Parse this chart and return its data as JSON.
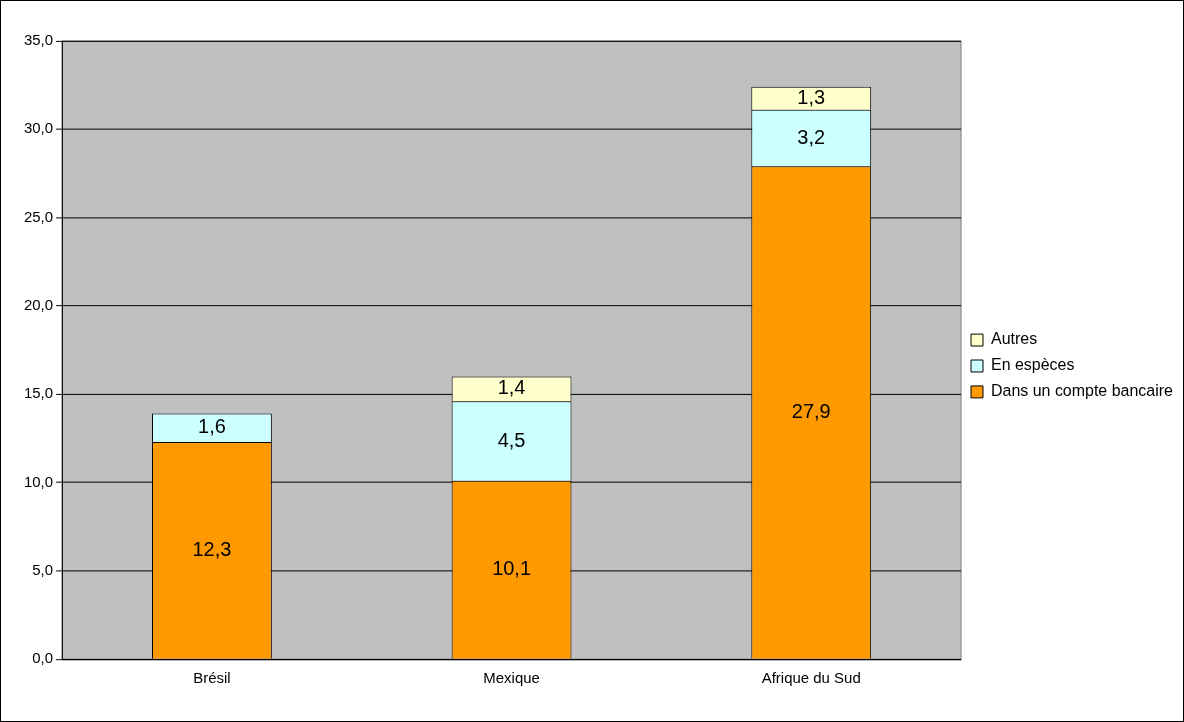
{
  "chart_data": {
    "type": "bar",
    "stacked": true,
    "categories": [
      "Brésil",
      "Mexique",
      "Afrique du Sud"
    ],
    "series": [
      {
        "name": "Dans un compte bancaire",
        "color": "#ff9900",
        "values": [
          12.3,
          10.1,
          27.9
        ],
        "value_labels": [
          "12,3",
          "10,1",
          "27,9"
        ]
      },
      {
        "name": "En espèces",
        "color": "#ccffff",
        "values": [
          1.6,
          4.5,
          3.2
        ],
        "value_labels": [
          "1,6",
          "4,5",
          "3,2"
        ]
      },
      {
        "name": "Autres",
        "color": "#ffffcc",
        "values": [
          null,
          1.4,
          1.3
        ],
        "value_labels": [
          null,
          "1,4",
          "1,3"
        ]
      }
    ],
    "ylim": [
      0,
      35
    ],
    "yticks": [
      {
        "value": 0,
        "label": "0,0"
      },
      {
        "value": 5,
        "label": "5,0"
      },
      {
        "value": 10,
        "label": "10,0"
      },
      {
        "value": 15,
        "label": "15,0"
      },
      {
        "value": 20,
        "label": "20,0"
      },
      {
        "value": 25,
        "label": "25,0"
      },
      {
        "value": 30,
        "label": "30,0"
      },
      {
        "value": 35,
        "label": "35,0"
      }
    ],
    "grid": "y",
    "legend": "right"
  }
}
